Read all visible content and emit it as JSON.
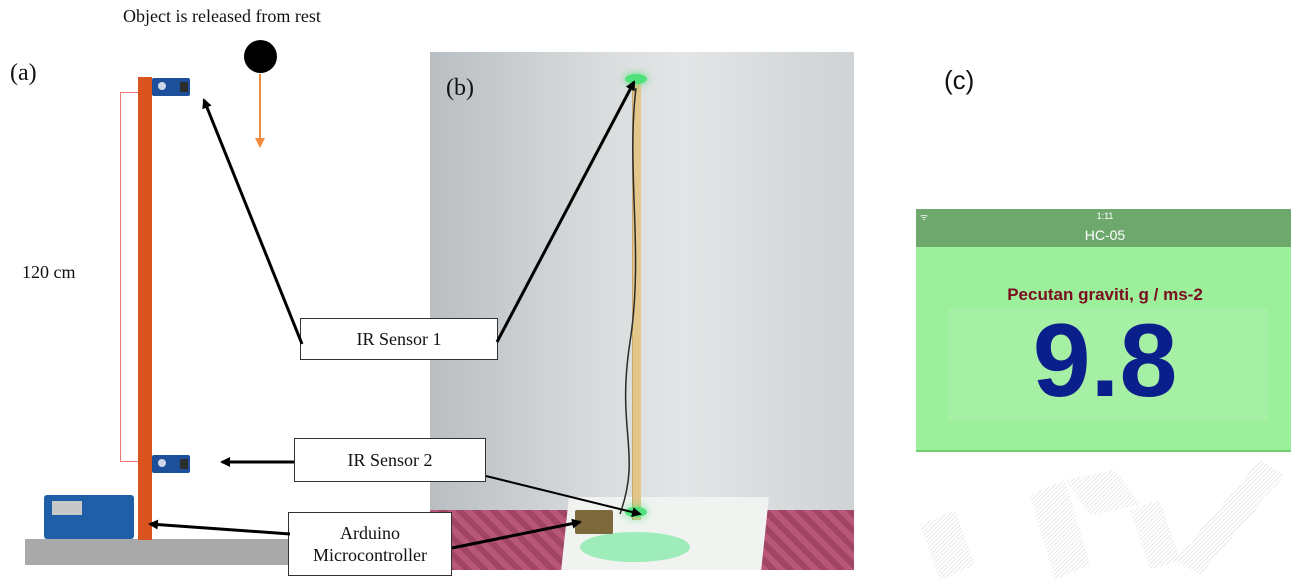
{
  "release_caption": "Object is released from rest",
  "panels": {
    "a": "(a)",
    "b": "(b)",
    "c": "(c)"
  },
  "height_label": "120 cm",
  "callouts": {
    "ir_sensor_1": "IR Sensor 1",
    "ir_sensor_2": "IR Sensor 2",
    "arduino_line1": "Arduino",
    "arduino_line2": "Microcontroller"
  },
  "phone": {
    "status_icon": "ᯤ",
    "status_time": "1:11",
    "app_title": "HC-05",
    "reading_label": "Pecutan graviti, g / ms-2",
    "reading_value": "9.8",
    "colors": {
      "app_bar": "#6ea86d",
      "background": "#9cf09c",
      "label": "#7a0d1f",
      "value": "#0b1f8c"
    }
  },
  "colors": {
    "pole": "#d9531e",
    "ground": "#a9a9a9",
    "fall_arrow": "#f08a3c",
    "bracket": "#e77777"
  }
}
